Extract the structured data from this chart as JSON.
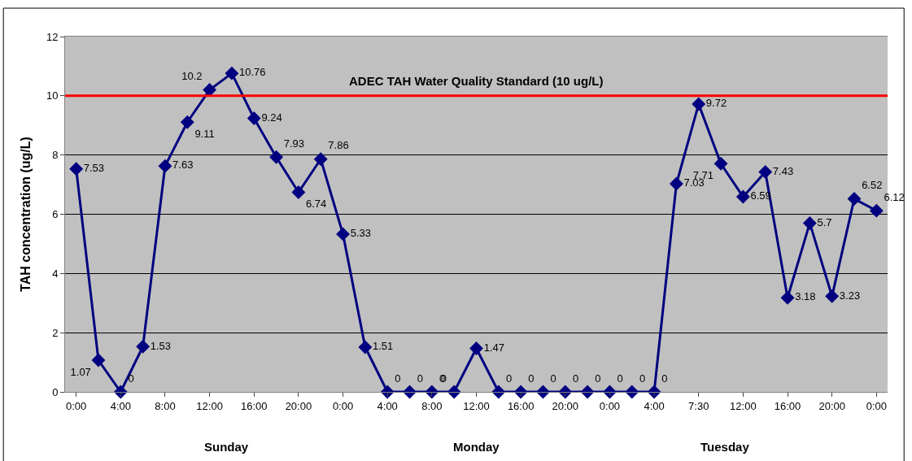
{
  "chart_data": {
    "type": "line",
    "ylabel": "TAH concentration (ug/L)",
    "categories": [
      "0:00",
      null,
      "4:00",
      null,
      "8:00",
      null,
      "12:00",
      null,
      "16:00",
      null,
      "20:00",
      null,
      "0:00",
      null,
      "4:00",
      null,
      "8:00",
      null,
      "12:00",
      null,
      "16:00",
      null,
      "20:00",
      null,
      "0:00",
      null,
      "4:00",
      null,
      "7:30",
      null,
      "12:00",
      null,
      "16:00",
      null,
      "20:00",
      null,
      "0:00"
    ],
    "series": [
      {
        "color": "#000080",
        "values": [
          7.53,
          1.07,
          0,
          1.53,
          7.63,
          9.11,
          10.2,
          10.76,
          9.24,
          7.93,
          6.74,
          7.86,
          5.33,
          1.51,
          0,
          0,
          0,
          0,
          1.47,
          0,
          0,
          0,
          0,
          0,
          0,
          0,
          0,
          7.03,
          9.72,
          7.71,
          6.59,
          7.43,
          3.18,
          5.7,
          3.23,
          6.52,
          6.12
        ]
      }
    ],
    "ylim": [
      0,
      12
    ],
    "yticks": [
      0,
      2,
      4,
      6,
      8,
      10,
      12
    ],
    "grid": "y",
    "marker": "diamond",
    "line_style": "solid",
    "data_labels": true,
    "legend": false,
    "ref_lines": [
      {
        "axis": "y",
        "value": 10,
        "label": "ADEC TAH Water Quality Standard (10 ug/L)",
        "color": "#ff0000"
      }
    ],
    "annotations": [
      "Sunday",
      "Monday",
      "Tuesday"
    ]
  }
}
